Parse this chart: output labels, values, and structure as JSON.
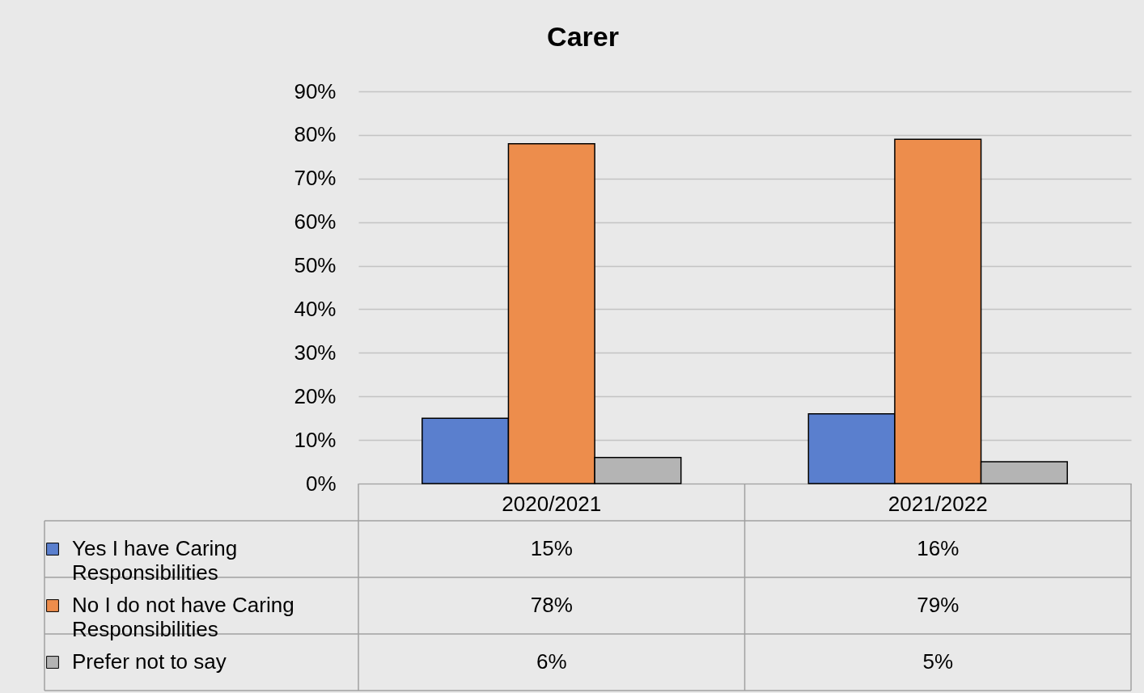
{
  "chart_data": {
    "type": "bar",
    "title": "Carer",
    "categories": [
      "2020/2021",
      "2021/2022"
    ],
    "series": [
      {
        "name": "Yes I have Caring Responsibilities",
        "color": "#5a7fce",
        "values": [
          15,
          16
        ],
        "value_labels": [
          "15%",
          "16%"
        ]
      },
      {
        "name": "No I do not have Caring Responsibilities",
        "color": "#ed8d4c",
        "values": [
          78,
          79
        ],
        "value_labels": [
          "78%",
          "79%"
        ]
      },
      {
        "name": "Prefer not to say",
        "color": "#b4b4b4",
        "values": [
          6,
          5
        ],
        "value_labels": [
          "6%",
          "5%"
        ]
      }
    ],
    "ylim": [
      0,
      90
    ],
    "yticks": [
      {
        "value": 0,
        "label": "0%"
      },
      {
        "value": 10,
        "label": "10%"
      },
      {
        "value": 20,
        "label": "20%"
      },
      {
        "value": 30,
        "label": "30%"
      },
      {
        "value": 40,
        "label": "40%"
      },
      {
        "value": 50,
        "label": "50%"
      },
      {
        "value": 60,
        "label": "60%"
      },
      {
        "value": 70,
        "label": "70%"
      },
      {
        "value": 80,
        "label": "80%"
      },
      {
        "value": 90,
        "label": "90%"
      }
    ],
    "grid": "y",
    "legend": "bottom"
  }
}
